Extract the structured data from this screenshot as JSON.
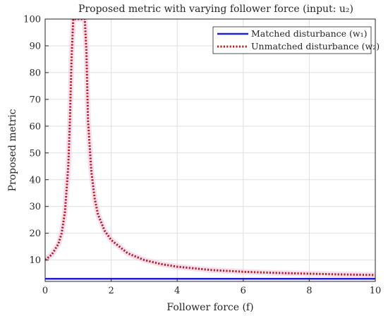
{
  "chart_data": {
    "type": "line",
    "title": "Proposed metric with varying follower force (input: u₂)",
    "xlabel": "Follower force (f)",
    "ylabel": "Proposed metric",
    "xlim": [
      0,
      10
    ],
    "ylim": [
      2,
      100
    ],
    "xticks": [
      0,
      2,
      4,
      6,
      8,
      10
    ],
    "yticks": [
      10,
      20,
      30,
      40,
      50,
      60,
      70,
      80,
      90,
      100
    ],
    "grid": true,
    "legend_position": "top-right",
    "series": [
      {
        "name": "Matched disturbance (w₁)",
        "style": "solid",
        "color": "#1f1fd6",
        "x": [
          0,
          10
        ],
        "y": [
          3,
          3
        ]
      },
      {
        "name": "Unmatched disturbance (w₂)",
        "style": "dotted",
        "color": "#b22222",
        "x": [
          0,
          0.2,
          0.4,
          0.5,
          0.6,
          0.7,
          0.75,
          0.8,
          0.85,
          1.2,
          1.25,
          1.3,
          1.4,
          1.5,
          1.6,
          1.8,
          2,
          2.5,
          3,
          3.5,
          4,
          5,
          6,
          7,
          8,
          9,
          10
        ],
        "y": [
          10,
          12,
          16,
          20,
          28,
          45,
          62,
          85,
          100,
          100,
          88,
          62,
          43,
          33,
          27,
          21,
          17.5,
          12.5,
          10,
          8.5,
          7.5,
          6.3,
          5.6,
          5.2,
          4.9,
          4.6,
          4.4
        ]
      }
    ]
  }
}
